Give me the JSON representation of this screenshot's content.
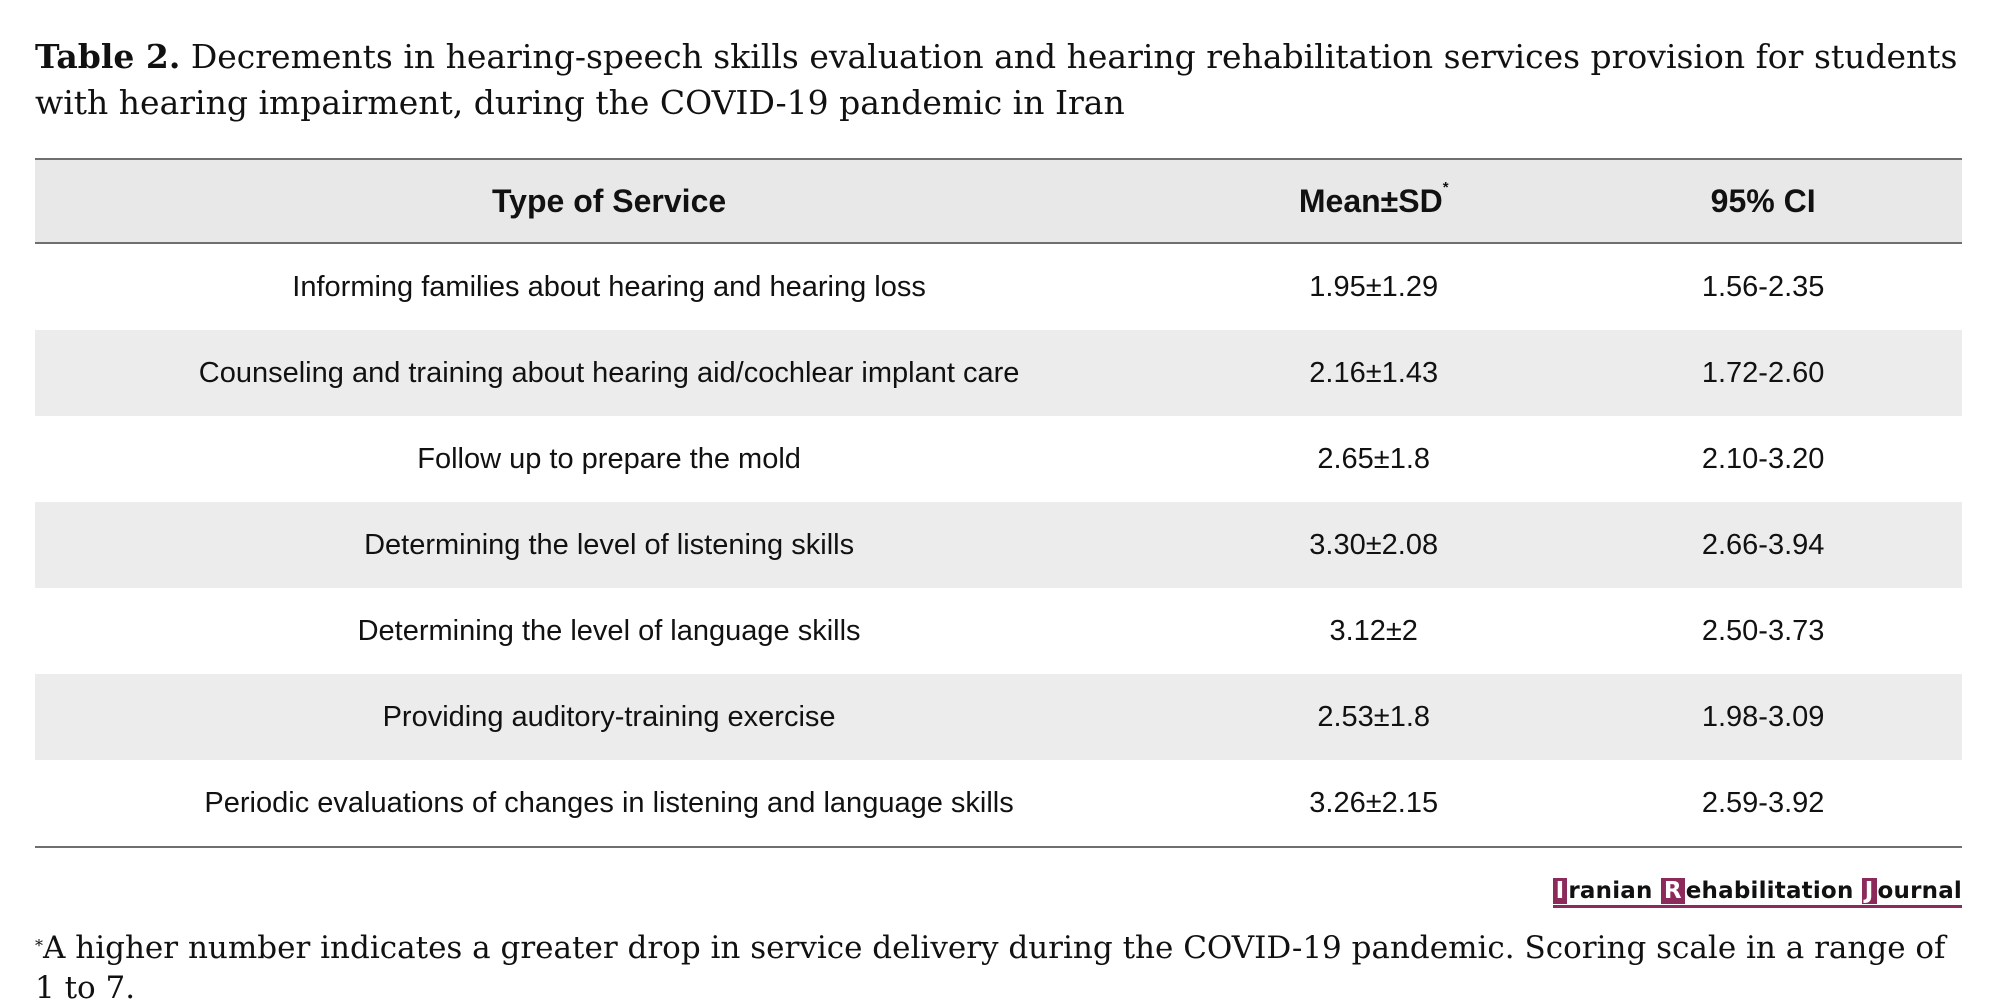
{
  "caption": {
    "label": "Table 2.",
    "text": " Decrements in hearing-speech skills evaluation and hearing rehabilitation services provision for students with hearing impairment, during the COVID-19 pandemic in Iran"
  },
  "table": {
    "headers": {
      "service": "Type of Service",
      "mean": "Mean±SD",
      "mean_marker": "*",
      "ci": "95% CI"
    },
    "rows": [
      {
        "service": "Informing families about hearing and hearing loss",
        "mean": "1.95±1.29",
        "ci": "1.56-2.35"
      },
      {
        "service": "Counseling and training about hearing aid/cochlear implant care",
        "mean": "2.16±1.43",
        "ci": "1.72-2.60"
      },
      {
        "service": "Follow up to prepare the mold",
        "mean": "2.65±1.8",
        "ci": "2.10-3.20"
      },
      {
        "service": "Determining the level of listening skills",
        "mean": "3.30±2.08",
        "ci": "2.66-3.94"
      },
      {
        "service": "Determining the level of language skills",
        "mean": "3.12±2",
        "ci": "2.50-3.73"
      },
      {
        "service": "Providing auditory-training exercise",
        "mean": "2.53±1.8",
        "ci": "1.98-3.09"
      },
      {
        "service": "Periodic evaluations of changes in listening and language skills",
        "mean": "3.26±2.15",
        "ci": "2.59-3.92"
      }
    ]
  },
  "journal_logo": {
    "words": [
      {
        "initial": "I",
        "rest": "ranian"
      },
      {
        "initial": "R",
        "rest": "ehabilitation"
      },
      {
        "initial": "J",
        "rest": "ournal"
      }
    ],
    "accent_color": "#8c2a5b"
  },
  "footnote": {
    "marker": "*",
    "text": "A higher number indicates a greater drop in service delivery during the COVID-19 pandemic. Scoring scale in a range of 1 to 7."
  }
}
